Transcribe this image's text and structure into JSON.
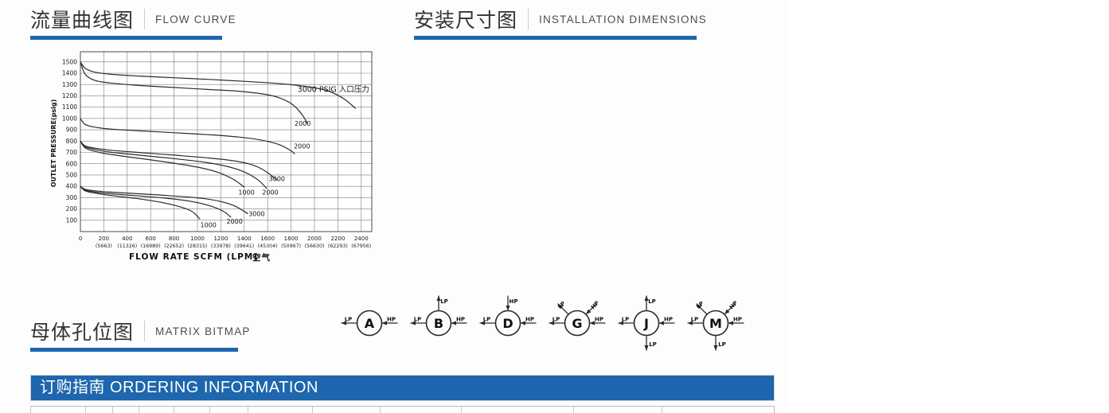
{
  "page": {
    "accent_blue": "#1e66ad",
    "content_bg": "#fdfdfd"
  },
  "sections": {
    "flow_curve": {
      "title_zh": "流量曲线图",
      "title_en": "FLOW CURVE"
    },
    "installation": {
      "title_zh": "安装尺寸图",
      "title_en": "INSTALLATION DIMENSIONS"
    },
    "matrix": {
      "title_zh": "母体孔位图",
      "title_en": "MATRIX BITMAP"
    },
    "ordering": {
      "title": "订购指南 ORDERING INFORMATION"
    }
  },
  "chart_data": {
    "type": "line",
    "xlabel": "FLOW RATE   SCFM (LPM)",
    "xlabel_suffix": "空气",
    "ylabel": "OUTLET PRESSURE(psig)",
    "xlim": [
      0,
      2490
    ],
    "ylim": [
      0,
      1590
    ],
    "grid": true,
    "x_ticks": [
      0,
      200,
      400,
      600,
      800,
      1000,
      1200,
      1400,
      1600,
      1800,
      2000,
      2200,
      2400
    ],
    "x_ticks_lpm": [
      "",
      "(5663)",
      "(11326)",
      "(16989)",
      "(22652)",
      "(28315)",
      "(33978)",
      "(39641)",
      "(45304)",
      "(50967)",
      "(56630)",
      "(62293)",
      "(67956)"
    ],
    "y_ticks": [
      100,
      200,
      300,
      400,
      500,
      600,
      700,
      800,
      900,
      1000,
      1100,
      1200,
      1300,
      1400,
      1500
    ],
    "series": [
      {
        "name": "outlet set 1500 - inlet 3000 PSIG",
        "inlet_psig": 3000,
        "points": [
          [
            0,
            1500
          ],
          [
            40,
            1445
          ],
          [
            120,
            1410
          ],
          [
            250,
            1392
          ],
          [
            500,
            1375
          ],
          [
            800,
            1360
          ],
          [
            1100,
            1345
          ],
          [
            1400,
            1328
          ],
          [
            1700,
            1308
          ],
          [
            1950,
            1280
          ],
          [
            2120,
            1242
          ],
          [
            2250,
            1175
          ],
          [
            2350,
            1090
          ]
        ]
      },
      {
        "name": "outlet set 1500 - inlet 2000 PSIG",
        "inlet_psig": 2000,
        "points": [
          [
            0,
            1500
          ],
          [
            40,
            1392
          ],
          [
            120,
            1338
          ],
          [
            250,
            1314
          ],
          [
            500,
            1292
          ],
          [
            800,
            1274
          ],
          [
            1100,
            1256
          ],
          [
            1350,
            1241
          ],
          [
            1550,
            1218
          ],
          [
            1700,
            1183
          ],
          [
            1820,
            1118
          ],
          [
            1900,
            1025
          ],
          [
            1940,
            955
          ]
        ]
      },
      {
        "name": "outlet set 1000 - inlet 2000 PSIG",
        "inlet_psig": 2000,
        "points": [
          [
            0,
            1000
          ],
          [
            40,
            948
          ],
          [
            120,
            924
          ],
          [
            250,
            907
          ],
          [
            500,
            891
          ],
          [
            800,
            874
          ],
          [
            1100,
            856
          ],
          [
            1350,
            836
          ],
          [
            1550,
            808
          ],
          [
            1700,
            768
          ],
          [
            1800,
            714
          ],
          [
            1830,
            688
          ]
        ]
      },
      {
        "name": "outlet set 800 - inlet 3000 PSIG",
        "inlet_psig": 3000,
        "points": [
          [
            0,
            800
          ],
          [
            40,
            758
          ],
          [
            120,
            738
          ],
          [
            250,
            720
          ],
          [
            500,
            699
          ],
          [
            800,
            676
          ],
          [
            1100,
            650
          ],
          [
            1300,
            627
          ],
          [
            1450,
            596
          ],
          [
            1560,
            548
          ],
          [
            1650,
            482
          ],
          [
            1680,
            455
          ]
        ]
      },
      {
        "name": "outlet set 800 - inlet 2000 PSIG",
        "inlet_psig": 2000,
        "points": [
          [
            0,
            800
          ],
          [
            40,
            750
          ],
          [
            120,
            726
          ],
          [
            250,
            703
          ],
          [
            500,
            676
          ],
          [
            800,
            645
          ],
          [
            1050,
            615
          ],
          [
            1250,
            577
          ],
          [
            1400,
            527
          ],
          [
            1520,
            455
          ],
          [
            1590,
            383
          ]
        ]
      },
      {
        "name": "outlet set 800 - inlet 1000 PSIG",
        "inlet_psig": 1000,
        "points": [
          [
            0,
            800
          ],
          [
            40,
            740
          ],
          [
            120,
            710
          ],
          [
            250,
            683
          ],
          [
            500,
            648
          ],
          [
            750,
            612
          ],
          [
            1000,
            570
          ],
          [
            1180,
            522
          ],
          [
            1310,
            460
          ],
          [
            1400,
            393
          ]
        ]
      },
      {
        "name": "outlet set 400 - inlet 3000 PSIG",
        "inlet_psig": 3000,
        "points": [
          [
            0,
            400
          ],
          [
            40,
            374
          ],
          [
            120,
            361
          ],
          [
            250,
            349
          ],
          [
            500,
            334
          ],
          [
            750,
            318
          ],
          [
            1000,
            298
          ],
          [
            1180,
            270
          ],
          [
            1320,
            226
          ],
          [
            1430,
            158
          ]
        ]
      },
      {
        "name": "outlet set 400 - inlet 2000 PSIG",
        "inlet_psig": 2000,
        "points": [
          [
            0,
            400
          ],
          [
            40,
            367
          ],
          [
            120,
            351
          ],
          [
            250,
            335
          ],
          [
            500,
            315
          ],
          [
            750,
            293
          ],
          [
            950,
            266
          ],
          [
            1100,
            230
          ],
          [
            1220,
            180
          ],
          [
            1285,
            128
          ]
        ]
      },
      {
        "name": "outlet set 400 - inlet 1000 PSIG",
        "inlet_psig": 1000,
        "points": [
          [
            0,
            400
          ],
          [
            40,
            360
          ],
          [
            120,
            341
          ],
          [
            250,
            320
          ],
          [
            450,
            296
          ],
          [
            650,
            266
          ],
          [
            820,
            228
          ],
          [
            950,
            180
          ],
          [
            1020,
            112
          ]
        ]
      }
    ],
    "annotations": [
      {
        "text": "3000 PSIG  入口压力",
        "x": 1855,
        "y": 1235,
        "size": "large"
      },
      {
        "text": "2000",
        "x": 1830,
        "y": 935
      },
      {
        "text": "2000",
        "x": 1824,
        "y": 735
      },
      {
        "text": "3000",
        "x": 1610,
        "y": 448
      },
      {
        "text": "1000",
        "x": 1350,
        "y": 328
      },
      {
        "text": "2000",
        "x": 1553,
        "y": 328
      },
      {
        "text": "3000",
        "x": 1437,
        "y": 136
      },
      {
        "text": "2000",
        "x": 1248,
        "y": 70
      },
      {
        "text": "1000",
        "x": 1024,
        "y": 40
      }
    ]
  },
  "matrix_diagrams": [
    {
      "label": "A",
      "ports": [
        {
          "dir": "left",
          "flow": "out",
          "label": "LP"
        },
        {
          "dir": "right",
          "flow": "in",
          "label": "HP"
        }
      ]
    },
    {
      "label": "B",
      "ports": [
        {
          "dir": "up",
          "flow": "out",
          "label": "LP"
        },
        {
          "dir": "left",
          "flow": "out",
          "label": "LP"
        },
        {
          "dir": "right",
          "flow": "in",
          "label": "HP"
        }
      ]
    },
    {
      "label": "D",
      "ports": [
        {
          "dir": "up",
          "flow": "in",
          "label": "HP"
        },
        {
          "dir": "left",
          "flow": "out",
          "label": "LP"
        },
        {
          "dir": "right",
          "flow": "in",
          "label": "HP"
        }
      ]
    },
    {
      "label": "G",
      "ports": [
        {
          "dir": "up-left",
          "flow": "out",
          "label": "LP"
        },
        {
          "dir": "up-right",
          "flow": "in",
          "label": "HP"
        },
        {
          "dir": "left",
          "flow": "out",
          "label": "LP"
        },
        {
          "dir": "right",
          "flow": "in",
          "label": "HP"
        }
      ]
    },
    {
      "label": "J",
      "ports": [
        {
          "dir": "up",
          "flow": "out",
          "label": "LP"
        },
        {
          "dir": "down",
          "flow": "out",
          "label": "LP"
        },
        {
          "dir": "left",
          "flow": "out",
          "label": "LP"
        },
        {
          "dir": "right",
          "flow": "in",
          "label": "HP"
        }
      ]
    },
    {
      "label": "M",
      "ports": [
        {
          "dir": "up-left",
          "flow": "out",
          "label": "LP"
        },
        {
          "dir": "up-right",
          "flow": "in",
          "label": "HP"
        },
        {
          "dir": "down",
          "flow": "out",
          "label": "LP"
        },
        {
          "dir": "left",
          "flow": "out",
          "label": "LP"
        },
        {
          "dir": "right",
          "flow": "in",
          "label": "HP"
        }
      ]
    }
  ]
}
